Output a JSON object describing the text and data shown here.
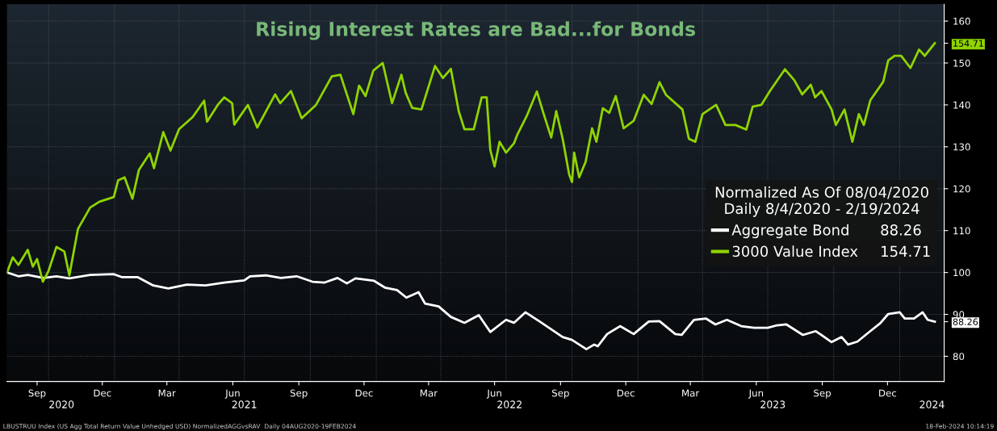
{
  "chart_data": {
    "type": "line",
    "title": "Rising Interest Rates are Bad...for Bonds",
    "legend_title": "Normalized As Of 08/04/2020\nDaily 8/4/2020 - 2/19/2024",
    "xlim": [
      "2020-08-04",
      "2024-03-03"
    ],
    "xticks": [
      {
        "value": "2020-09-15",
        "label": "Sep"
      },
      {
        "value": "2020-12-15",
        "label": "Dec"
      },
      {
        "value": "2021-03-15",
        "label": "Mar"
      },
      {
        "value": "2021-06-15",
        "label": "Jun"
      },
      {
        "value": "2021-09-15",
        "label": "Sep"
      },
      {
        "value": "2021-12-15",
        "label": "Dec"
      },
      {
        "value": "2022-03-15",
        "label": "Mar"
      },
      {
        "value": "2022-06-15",
        "label": "Jun"
      },
      {
        "value": "2022-09-15",
        "label": "Sep"
      },
      {
        "value": "2022-12-15",
        "label": "Dec"
      },
      {
        "value": "2023-03-15",
        "label": "Mar"
      },
      {
        "value": "2023-06-15",
        "label": "Jun"
      },
      {
        "value": "2023-09-15",
        "label": "Sep"
      },
      {
        "value": "2023-12-15",
        "label": "Dec"
      },
      {
        "value": "2020-10-01",
        "label": null
      },
      {
        "value": "2021-01-01",
        "label": null
      },
      {
        "value": "2021-04-01",
        "label": null
      },
      {
        "value": "2021-07-01",
        "label": null
      },
      {
        "value": "2021-10-01",
        "label": null
      },
      {
        "value": "2022-01-01",
        "label": null
      },
      {
        "value": "2022-04-01",
        "label": null
      },
      {
        "value": "2022-07-01",
        "label": null
      },
      {
        "value": "2022-10-01",
        "label": null
      },
      {
        "value": "2023-01-01",
        "label": null
      },
      {
        "value": "2023-04-01",
        "label": null
      },
      {
        "value": "2023-07-01",
        "label": null
      },
      {
        "value": "2023-10-01",
        "label": null
      },
      {
        "value": "2024-01-01",
        "label": null
      }
    ],
    "x2lim": [
      "2020-08-04",
      "2024-03-03"
    ],
    "x2ticks": [
      {
        "value": "2020-10-19",
        "label": "2020"
      },
      {
        "value": "2021-07-01",
        "label": "2021"
      },
      {
        "value": "2022-07-06",
        "label": "2022"
      },
      {
        "value": "2023-07-08",
        "label": "2023"
      },
      {
        "value": "2024-02-15",
        "label": "2024"
      }
    ],
    "ylim": [
      74,
      164
    ],
    "yticks": [
      80,
      90,
      100,
      110,
      120,
      130,
      140,
      150,
      160,
      {
        "value": 88.26,
        "label": "88.26"
      },
      {
        "value": 154.71,
        "label": "154.71"
      }
    ],
    "grid": true,
    "legend": "right",
    "marker": "none",
    "line_style": "solid",
    "series": [
      {
        "name": "Aggregate Bond",
        "color": "#ffffff",
        "x": [
          "2020-08-04",
          "2020-08-20",
          "2020-09-02",
          "2020-09-24",
          "2020-10-12",
          "2020-10-30",
          "2020-11-28",
          "2020-12-31",
          "2021-01-11",
          "2021-02-02",
          "2021-02-24",
          "2021-03-17",
          "2021-04-12",
          "2021-05-08",
          "2021-06-03",
          "2021-07-01",
          "2021-07-09",
          "2021-07-31",
          "2021-08-21",
          "2021-09-12",
          "2021-10-04",
          "2021-10-21",
          "2021-11-08",
          "2021-11-21",
          "2021-12-03",
          "2021-12-29",
          "2022-01-13",
          "2022-01-30",
          "2022-02-12",
          "2022-03-01",
          "2022-03-10",
          "2022-03-29",
          "2022-04-15",
          "2022-05-04",
          "2022-05-24",
          "2022-06-09",
          "2022-07-01",
          "2022-07-12",
          "2022-07-28",
          "2022-08-17",
          "2022-09-18",
          "2022-10-01",
          "2022-10-21",
          "2022-11-01",
          "2022-11-06",
          "2022-11-19",
          "2022-12-07",
          "2022-12-26",
          "2023-01-16",
          "2023-01-31",
          "2023-02-22",
          "2023-03-03",
          "2023-03-20",
          "2023-04-06",
          "2023-04-19",
          "2023-05-05",
          "2023-05-25",
          "2023-06-12",
          "2023-07-01",
          "2023-07-14",
          "2023-07-27",
          "2023-08-19",
          "2023-09-06",
          "2023-09-28",
          "2023-10-12",
          "2023-10-21",
          "2023-11-03",
          "2023-11-21",
          "2023-12-05",
          "2023-12-16",
          "2024-01-01",
          "2024-01-08",
          "2024-01-21",
          "2024-02-02",
          "2024-02-09",
          "2024-02-19"
        ],
        "values": [
          100,
          99.1,
          99.4,
          98.7,
          99.1,
          98.6,
          99.4,
          99.6,
          98.9,
          98.9,
          96.9,
          96.2,
          97.1,
          96.9,
          97.6,
          98.1,
          99.1,
          99.3,
          98.7,
          99.1,
          97.8,
          97.6,
          98.7,
          97.4,
          98.6,
          98,
          96.4,
          95.8,
          94,
          95.3,
          92.6,
          91.9,
          89.4,
          88,
          89.8,
          85.8,
          88.7,
          88,
          90.5,
          88.3,
          84.6,
          83.9,
          81.7,
          82.8,
          82.4,
          85.3,
          87.2,
          85.3,
          88.3,
          88.4,
          85.3,
          85.1,
          88.7,
          89,
          87.6,
          88.7,
          87.2,
          86.8,
          86.8,
          87.4,
          87.6,
          85.1,
          86,
          83.4,
          84.6,
          82.8,
          83.5,
          86,
          87.9,
          90.1,
          90.5,
          89,
          89,
          90.5,
          88.7,
          88.26
        ]
      },
      {
        "name": "3000 Value Index",
        "color": "#8fd400",
        "x": [
          "2020-08-04",
          "2020-08-12",
          "2020-08-20",
          "2020-09-02",
          "2020-09-09",
          "2020-09-15",
          "2020-09-23",
          "2020-10-01",
          "2020-10-12",
          "2020-10-23",
          "2020-10-30",
          "2020-11-11",
          "2020-11-28",
          "2020-12-11",
          "2020-12-31",
          "2021-01-06",
          "2021-01-15",
          "2021-01-26",
          "2021-02-04",
          "2021-02-19",
          "2021-02-25",
          "2021-03-10",
          "2021-03-20",
          "2021-04-01",
          "2021-04-20",
          "2021-05-06",
          "2021-05-10",
          "2021-05-25",
          "2021-06-03",
          "2021-06-14",
          "2021-06-17",
          "2021-07-06",
          "2021-07-19",
          "2021-08-13",
          "2021-08-20",
          "2021-09-04",
          "2021-09-19",
          "2021-10-09",
          "2021-10-31",
          "2021-11-12",
          "2021-11-30",
          "2021-12-08",
          "2021-12-17",
          "2021-12-28",
          "2022-01-10",
          "2022-01-23",
          "2022-02-05",
          "2022-02-11",
          "2022-02-20",
          "2022-03-05",
          "2022-03-24",
          "2022-04-04",
          "2022-04-15",
          "2022-04-26",
          "2022-05-04",
          "2022-05-17",
          "2022-05-28",
          "2022-06-04",
          "2022-06-09",
          "2022-06-15",
          "2022-06-22",
          "2022-07-01",
          "2022-07-12",
          "2022-07-17",
          "2022-07-30",
          "2022-08-13",
          "2022-08-22",
          "2022-09-02",
          "2022-09-09",
          "2022-09-18",
          "2022-09-27",
          "2022-10-01",
          "2022-10-04",
          "2022-10-11",
          "2022-10-20",
          "2022-10-29",
          "2022-11-04",
          "2022-11-13",
          "2022-11-22",
          "2022-12-01",
          "2022-12-12",
          "2022-12-26",
          "2023-01-09",
          "2023-01-20",
          "2023-01-31",
          "2023-02-09",
          "2023-03-04",
          "2023-03-13",
          "2023-03-22",
          "2023-04-01",
          "2023-04-20",
          "2023-05-03",
          "2023-05-17",
          "2023-06-01",
          "2023-06-10",
          "2023-06-22",
          "2023-07-04",
          "2023-07-25",
          "2023-08-07",
          "2023-08-18",
          "2023-08-30",
          "2023-09-05",
          "2023-09-14",
          "2023-09-28",
          "2023-10-04",
          "2023-10-16",
          "2023-10-27",
          "2023-11-05",
          "2023-11-12",
          "2023-11-21",
          "2023-12-09",
          "2023-12-16",
          "2023-12-25",
          "2024-01-03",
          "2024-01-16",
          "2024-01-28",
          "2024-02-05",
          "2024-02-19"
        ],
        "values": [
          100,
          103.6,
          101.8,
          105.4,
          101.4,
          103.2,
          97.8,
          100.4,
          106.1,
          105,
          99.3,
          110.4,
          115.5,
          116.9,
          118,
          122,
          122.7,
          117.6,
          124.5,
          128.4,
          124.9,
          133.5,
          129.1,
          134.2,
          137.1,
          141,
          136,
          140,
          141.8,
          140.4,
          135.3,
          140,
          134.6,
          142.5,
          140.4,
          143.3,
          136.8,
          140,
          146.8,
          147.2,
          137.8,
          144.6,
          142.1,
          148.2,
          150,
          140.4,
          147.2,
          142.9,
          139.3,
          138.9,
          149.3,
          146.4,
          148.6,
          138.5,
          134.2,
          134.2,
          141.8,
          141.8,
          129.3,
          125.3,
          131.2,
          128.6,
          130.8,
          133,
          137.4,
          143.2,
          138.1,
          132.2,
          138.5,
          131.9,
          123.4,
          121.6,
          128.6,
          122.7,
          126.4,
          134.4,
          131.2,
          139.2,
          138.1,
          142.1,
          134.4,
          136.2,
          142.4,
          140.2,
          145.4,
          142.4,
          138.9,
          131.9,
          131.2,
          137.8,
          140,
          135.2,
          135.2,
          134.1,
          139.6,
          140,
          143.3,
          148.5,
          145.9,
          142.5,
          144.8,
          141.8,
          143.3,
          138.9,
          135.2,
          138.9,
          131.2,
          137.8,
          135.2,
          141.1,
          145.5,
          150.6,
          151.7,
          151.7,
          148.8,
          153.2,
          151.7,
          154.71
        ]
      }
    ],
    "annotations": [
      "LBUSTRUU Index (US Agg Total Return Value Unhedged USD) NormalizedAGGvsRAV  Daily 04AUG2020-19FEB2024",
      "18-Feb-2024 10:14:19"
    ]
  }
}
